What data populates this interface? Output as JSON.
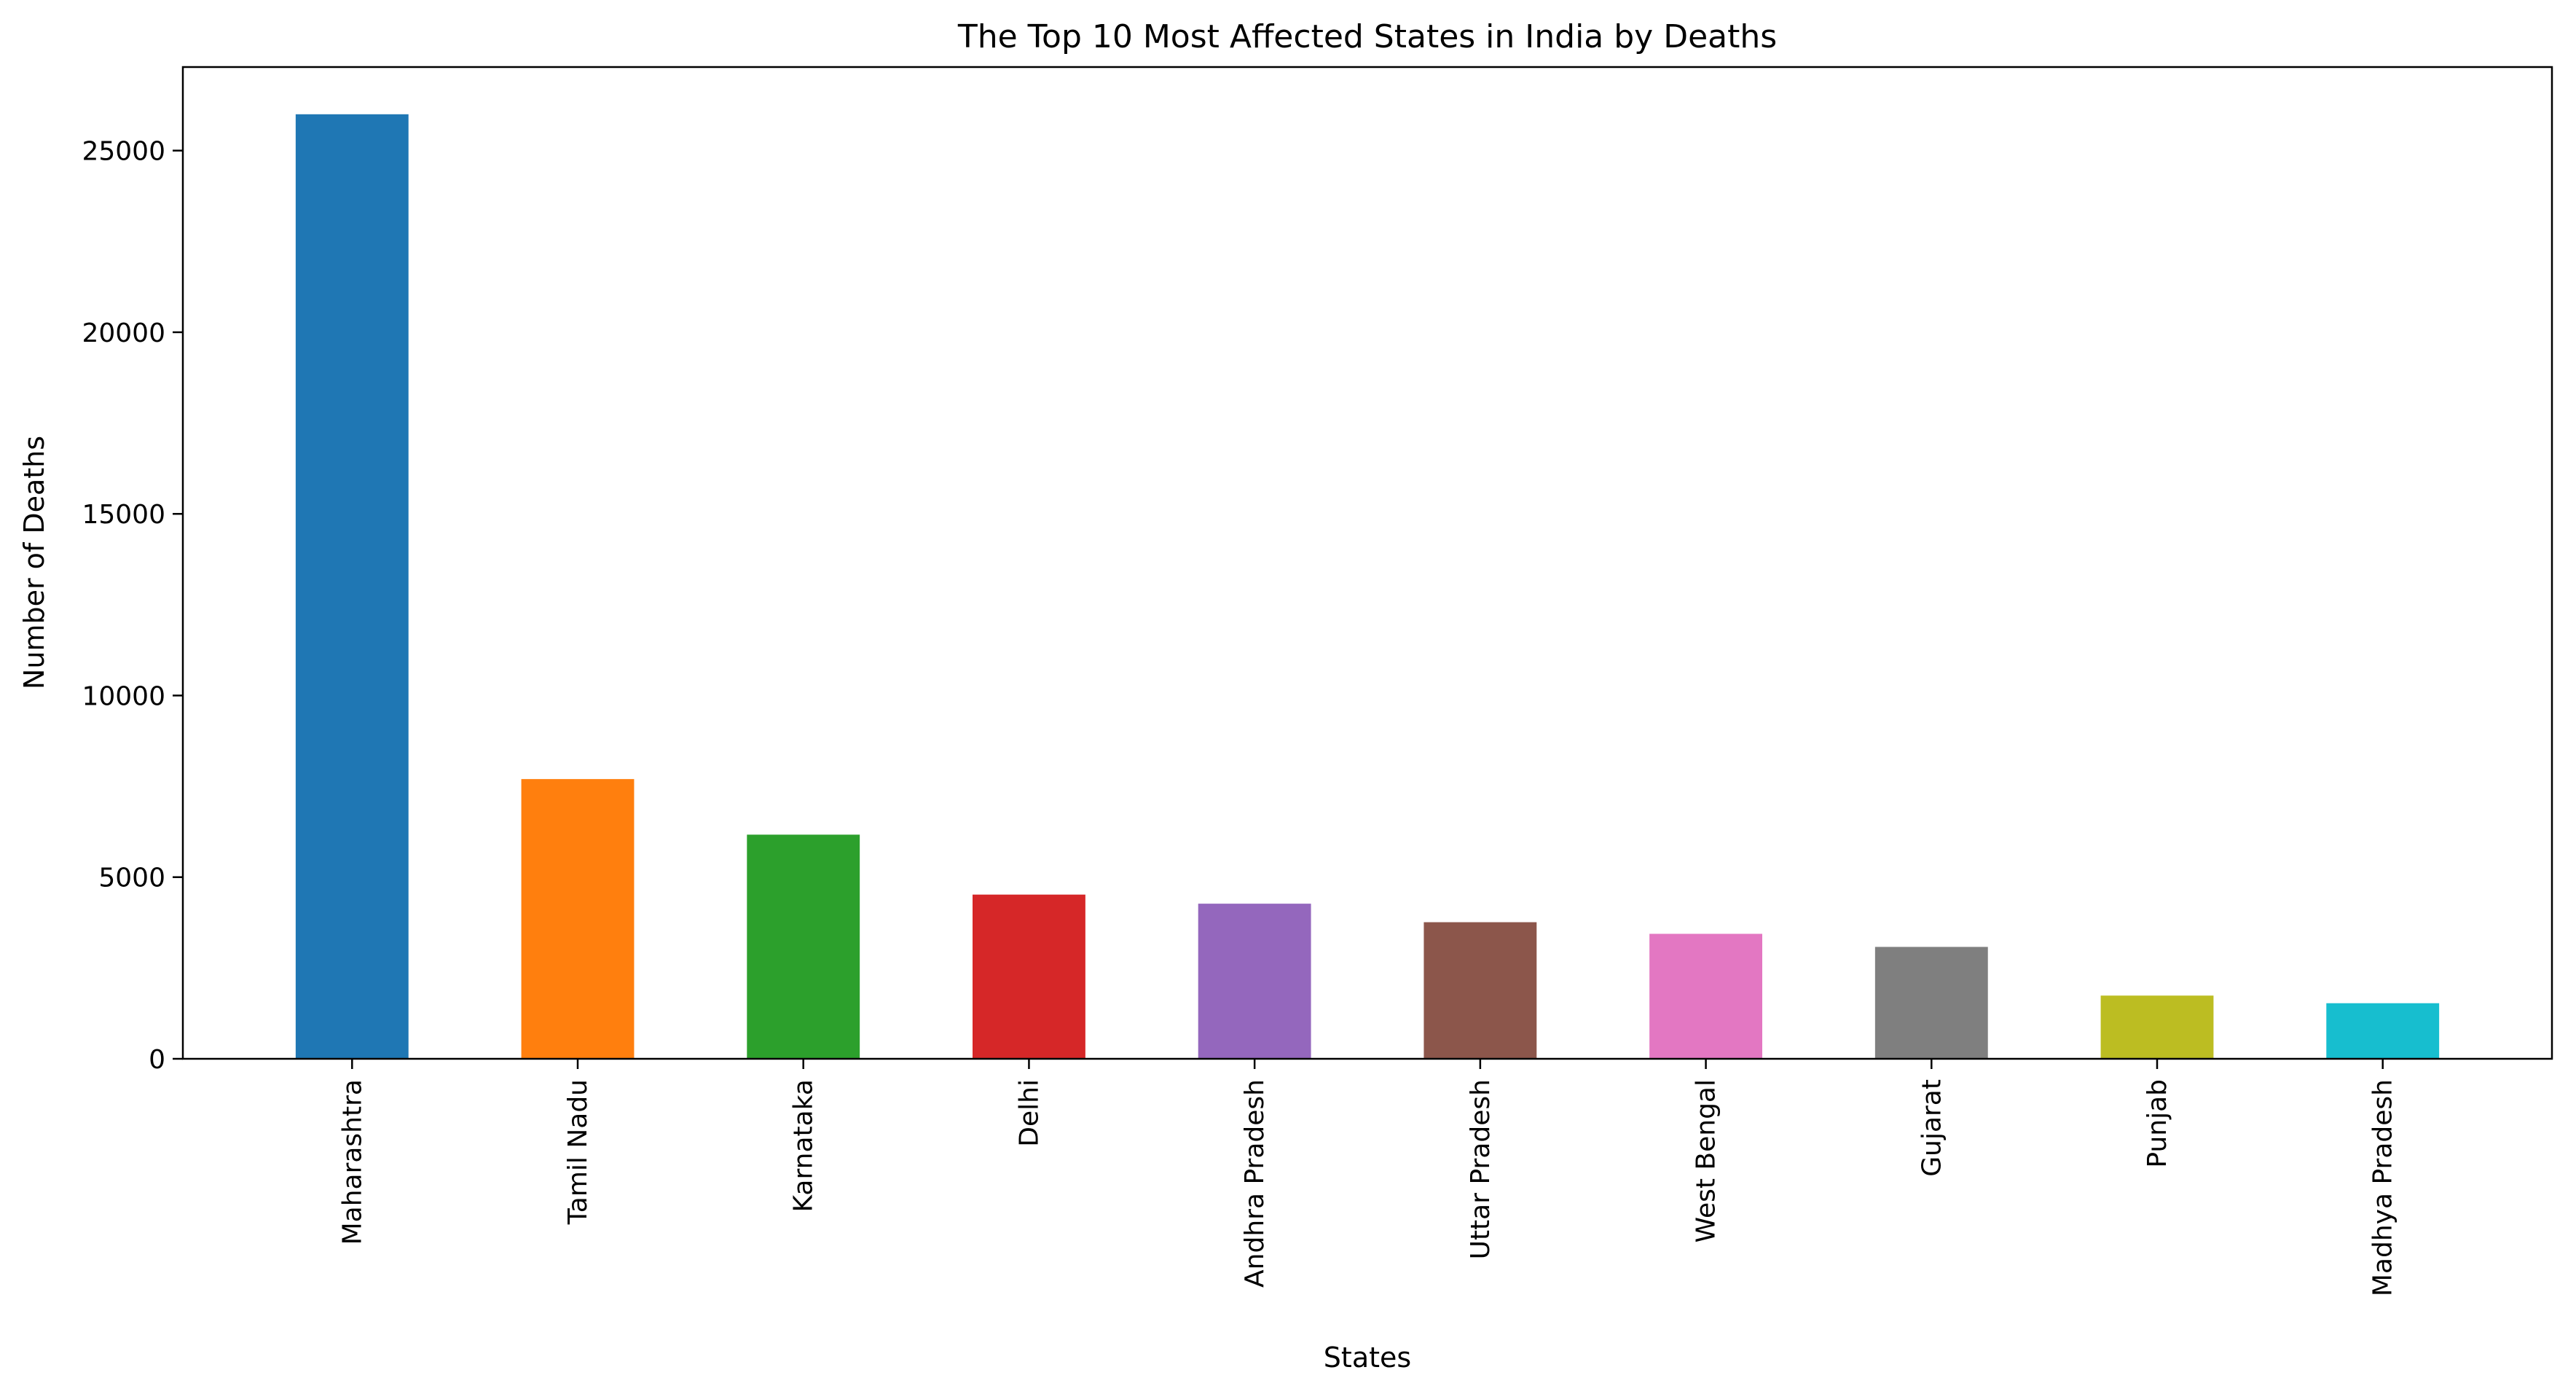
{
  "chart_data": {
    "type": "bar",
    "title": "The Top 10 Most Affected States in India by Deaths",
    "xlabel": "States",
    "ylabel": "Number of Deaths",
    "categories": [
      "Maharashtra",
      "Tamil Nadu",
      "Karnataka",
      "Delhi",
      "Andhra Pradesh",
      "Uttar Pradesh",
      "West Bengal",
      "Gujarat",
      "Punjab",
      "Madhya Pradesh"
    ],
    "values": [
      26000,
      7700,
      6170,
      4520,
      4270,
      3760,
      3440,
      3080,
      1740,
      1530
    ],
    "colors": [
      "#1f77b4",
      "#ff7f0e",
      "#2ca02c",
      "#d62728",
      "#9467bd",
      "#8c564b",
      "#e377c2",
      "#7f7f7f",
      "#bcbd22",
      "#17becf"
    ],
    "ylim": [
      0,
      27300
    ],
    "yticks": [
      0,
      5000,
      10000,
      15000,
      20000,
      25000
    ],
    "grid": false,
    "legend": false
  }
}
